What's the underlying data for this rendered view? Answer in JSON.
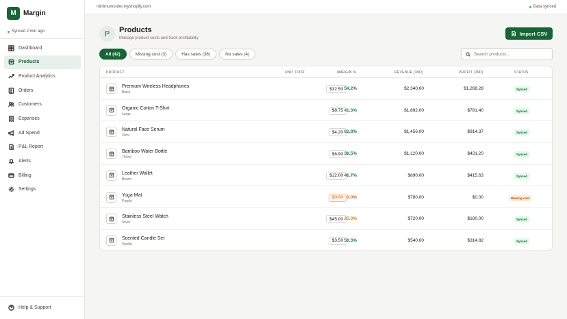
{
  "brand": {
    "logo_letter": "M",
    "name": "Margin"
  },
  "sidebar": {
    "sync_text": "Synced 2 min ago",
    "items": [
      {
        "label": "Dashboard",
        "icon": "dashboard-icon",
        "active": false
      },
      {
        "label": "Products",
        "icon": "box-icon",
        "active": true
      },
      {
        "label": "Product Analytics",
        "icon": "analytics-icon",
        "active": false
      },
      {
        "label": "Orders",
        "icon": "orders-icon",
        "active": false
      },
      {
        "label": "Customers",
        "icon": "users-icon",
        "active": false
      },
      {
        "label": "Expenses",
        "icon": "receipt-icon",
        "active": false
      },
      {
        "label": "Ad Spend",
        "icon": "megaphone-icon",
        "active": false
      },
      {
        "label": "P&L Report",
        "icon": "report-icon",
        "active": false
      },
      {
        "label": "Alerts",
        "icon": "bell-icon",
        "active": false
      },
      {
        "label": "Billing",
        "icon": "card-icon",
        "active": false
      },
      {
        "label": "Settings",
        "icon": "gear-icon",
        "active": false
      }
    ],
    "help_label": "Help & Support"
  },
  "topbar": {
    "store": "minimumorder.myshopify.com",
    "data_status": "Data synced"
  },
  "header": {
    "icon_letter": "P",
    "title": "Products",
    "subtitle": "Manage product costs and track profitability",
    "import_label": "Import CSV"
  },
  "filters": [
    {
      "label": "All (42)",
      "active": true
    },
    {
      "label": "Missing cost (3)",
      "active": false
    },
    {
      "label": "Has sales (38)",
      "active": false
    },
    {
      "label": "No sales (4)",
      "active": false
    }
  ],
  "search": {
    "placeholder": "Search products..."
  },
  "table": {
    "headers": {
      "product": "PRODUCT",
      "unit_cost": "UNIT COST",
      "margin": "MARGIN %",
      "revenue": "REVENUE (30D)",
      "profit": "PROFIT (30D)",
      "status": "STATUS"
    },
    "rows": [
      {
        "name": "Premium Wireless Headphones",
        "variant": "Black",
        "cost": "$32.50",
        "margin": "54.2%",
        "revenue": "$2,340.00",
        "profit": "$1,268.28",
        "status": "Synced",
        "tone": "good"
      },
      {
        "name": "Organic Cotton T-Shirt",
        "variant": "Large",
        "cost": "$8.75",
        "margin": "41.3%",
        "revenue": "$1,892.00",
        "profit": "$781.40",
        "status": "Synced",
        "tone": "good"
      },
      {
        "name": "Natural Face Serum",
        "variant": "30ml",
        "cost": "$4.20",
        "margin": "62.8%",
        "revenue": "$1,456.00",
        "profit": "$914.37",
        "status": "Synced",
        "tone": "good"
      },
      {
        "name": "Bamboo Water Bottle",
        "variant": "750ml",
        "cost": "$6.90",
        "margin": "38.5%",
        "revenue": "$1,120.00",
        "profit": "$431.20",
        "status": "Synced",
        "tone": "good"
      },
      {
        "name": "Leather Wallet",
        "variant": "Brown",
        "cost": "$12.00",
        "margin": "46.7%",
        "revenue": "$890.00",
        "profit": "$415.63",
        "status": "Synced",
        "tone": "good"
      },
      {
        "name": "Yoga Mat",
        "variant": "Purple",
        "cost": "$0.00",
        "margin": "0.0%",
        "revenue": "$780.00",
        "profit": "$0.00",
        "status": "Missing cost",
        "tone": "missing"
      },
      {
        "name": "Stainless Steel Watch",
        "variant": "Silver",
        "cost": "$45.00",
        "margin": "25.0%",
        "revenue": "$720.00",
        "profit": "$180.00",
        "status": "Synced",
        "tone": "low"
      },
      {
        "name": "Scented Candle Set",
        "variant": "Vanilla",
        "cost": "$3.50",
        "margin": "58.3%",
        "revenue": "$540.00",
        "profit": "$314.82",
        "status": "Synced",
        "tone": "good"
      }
    ]
  },
  "colors": {
    "brand_green": "#166534",
    "margin_good": "#15803d",
    "margin_low": "#ca8a04",
    "margin_missing": "#ea580c",
    "synced_bg": "#dcfce7",
    "synced_text": "#166534",
    "missing_bg": "#ffedd5",
    "missing_text": "#c2410c"
  }
}
